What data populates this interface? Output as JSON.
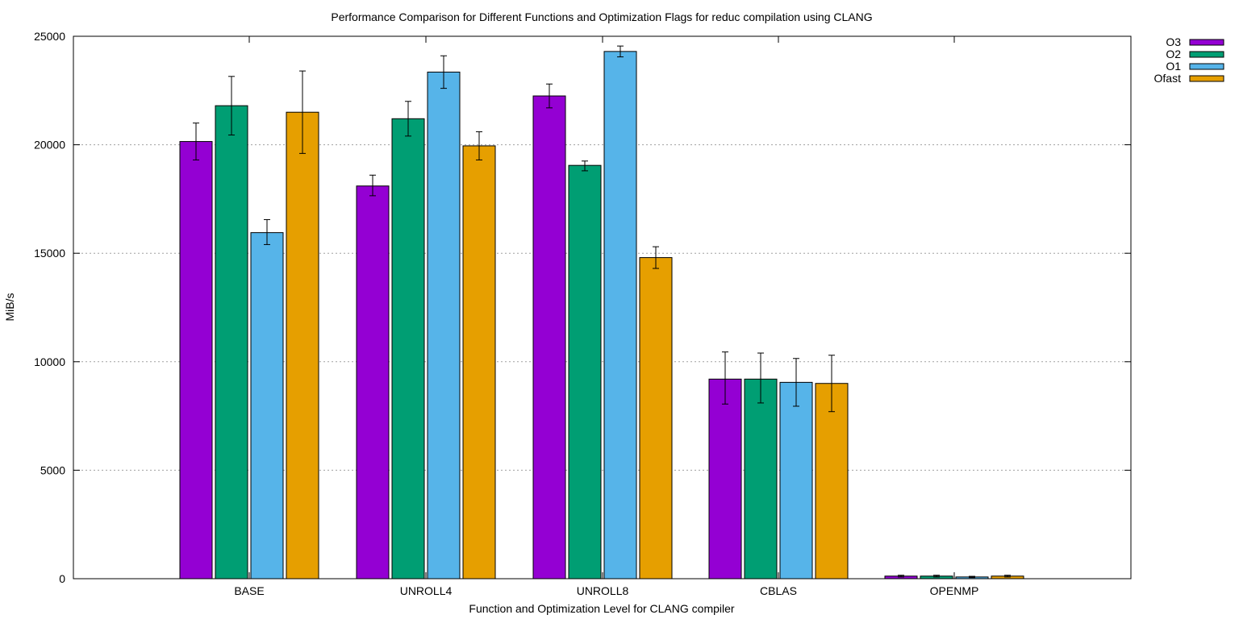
{
  "chart_data": {
    "type": "bar",
    "title": "Performance Comparison for Different Functions and Optimization Flags for reduc compilation using CLANG",
    "xlabel": "Function and Optimization Level for CLANG compiler",
    "ylabel": "MiB/s",
    "ylim": [
      0,
      25000
    ],
    "yticks": [
      0,
      5000,
      10000,
      15000,
      20000,
      25000
    ],
    "grid": "horizontal dotted",
    "legend_position": "top-right outside",
    "categories": [
      "BASE",
      "UNROLL4",
      "UNROLL8",
      "CBLAS",
      "OPENMP"
    ],
    "series": [
      {
        "name": "O3",
        "color": "#9400d3",
        "values": [
          20150,
          18100,
          22250,
          9200,
          120
        ],
        "err_low": [
          19300,
          17650,
          21700,
          8050,
          80
        ],
        "err_high": [
          21000,
          18600,
          22800,
          10450,
          160
        ]
      },
      {
        "name": "O2",
        "color": "#009e73",
        "values": [
          21800,
          21200,
          19050,
          9200,
          120
        ],
        "err_low": [
          20450,
          20400,
          18800,
          8100,
          80
        ],
        "err_high": [
          23150,
          22000,
          19250,
          10400,
          160
        ]
      },
      {
        "name": "O1",
        "color": "#56b4e9",
        "values": [
          15950,
          23350,
          24300,
          9050,
          80
        ],
        "err_low": [
          15400,
          22600,
          24050,
          7950,
          50
        ],
        "err_high": [
          16550,
          24100,
          24550,
          10150,
          110
        ]
      },
      {
        "name": "Ofast",
        "color": "#e69f00",
        "values": [
          21500,
          19950,
          14800,
          9000,
          120
        ],
        "err_low": [
          19600,
          19300,
          14300,
          7700,
          80
        ],
        "err_high": [
          23400,
          20600,
          15300,
          10300,
          160
        ]
      }
    ]
  }
}
